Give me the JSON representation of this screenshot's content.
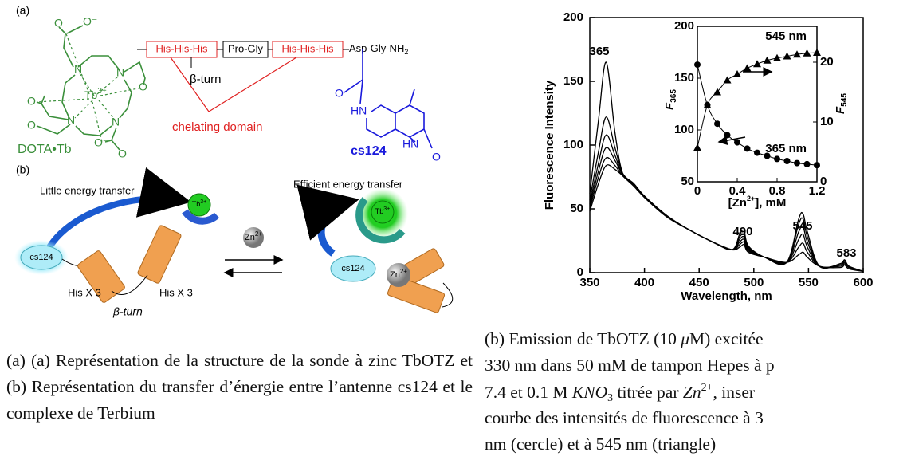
{
  "figure_a": {
    "panel_a": "(a)",
    "panel_b": "(b)",
    "atoms": [
      "O",
      "O⁻",
      "N",
      "N",
      "O",
      "N",
      "N",
      "O",
      "O",
      "O⁻",
      "O"
    ],
    "metal": [
      "Tb",
      "3+"
    ],
    "dota_label": "DOTA•Tb",
    "peptide": [
      "His-His-His",
      "Pro-Gly",
      "His-His-His"
    ],
    "peptide_end": [
      "Asp-Gly-NH",
      "2"
    ],
    "beta_turn": "β-turn",
    "chelating": "chelating domain",
    "cs124_atoms": [
      "O",
      "HN",
      "HN",
      "O"
    ],
    "cs124": "cs124",
    "little": "Little energy transfer",
    "efficient": "Efficient energy transfer",
    "scheme": [
      "cs124",
      "Tb",
      "3+",
      "Zn",
      "2+",
      "His X 3",
      "His X 3",
      "β-turn"
    ]
  },
  "chart_data": [
    {
      "type": "line",
      "x_label": "Wavelength, nm",
      "y_label": "Fluorescence Intensity",
      "x": [
        350,
        358,
        365,
        373,
        380,
        390,
        400,
        420,
        440,
        460,
        480,
        487,
        491,
        495,
        510,
        530,
        541,
        545,
        549,
        560,
        579,
        583,
        587,
        600
      ],
      "series": [
        {
          "color": "#000000",
          "values": [
            62,
            120,
            165,
            110,
            78,
            70,
            60,
            45,
            34,
            25,
            18,
            20,
            22,
            16,
            12,
            8,
            14,
            16,
            12,
            5,
            4,
            6,
            3,
            1
          ]
        },
        {
          "color": "#000000",
          "values": [
            57,
            95,
            122,
            98,
            78,
            70,
            60,
            45,
            34,
            25,
            18,
            22,
            24,
            17,
            12,
            8,
            20,
            23,
            16,
            5,
            5,
            7,
            4,
            1
          ]
        },
        {
          "color": "#000000",
          "values": [
            54,
            86,
            108,
            92,
            77,
            69,
            60,
            45,
            34,
            25,
            18,
            24,
            26,
            18,
            12,
            8,
            26,
            30,
            20,
            5,
            6,
            8,
            4,
            1
          ]
        },
        {
          "color": "#000000",
          "values": [
            52,
            80,
            98,
            88,
            77,
            69,
            59,
            44,
            34,
            25,
            18,
            26,
            28,
            19,
            12,
            8,
            32,
            36,
            24,
            5,
            6,
            9,
            5,
            1
          ]
        },
        {
          "color": "#000000",
          "values": [
            50,
            75,
            90,
            84,
            76,
            68,
            59,
            44,
            34,
            25,
            18,
            28,
            30,
            20,
            12,
            8,
            38,
            42,
            28,
            5,
            7,
            10,
            5,
            1
          ]
        },
        {
          "color": "#000000",
          "values": [
            48,
            70,
            84,
            81,
            76,
            68,
            59,
            44,
            34,
            25,
            18,
            30,
            33,
            21,
            12,
            8,
            42,
            46,
            32,
            5,
            7,
            10,
            5,
            1
          ]
        }
      ],
      "xlim": [
        350,
        600
      ],
      "xticks": [
        350,
        400,
        450,
        500,
        550,
        600
      ],
      "ylim": [
        0,
        200
      ],
      "yticks": [
        0,
        50,
        100,
        150,
        200
      ],
      "annotations": [
        "365",
        "490",
        "545",
        "583"
      ]
    },
    {
      "type": "scatter",
      "x_label": [
        "[Zn",
        "2+",
        "], mM"
      ],
      "y_label": [
        "F",
        "365"
      ],
      "y2_label": [
        "F",
        "545"
      ],
      "x": [
        0,
        0.1,
        0.2,
        0.3,
        0.4,
        0.5,
        0.6,
        0.7,
        0.8,
        0.9,
        1.0,
        1.1,
        1.2
      ],
      "series": [
        {
          "name": "365 nm",
          "marker": "circle",
          "color": "#000000",
          "values": [
            163,
            124,
            106,
            95,
            88,
            82,
            78,
            75,
            72,
            70,
            68,
            67,
            66
          ]
        },
        {
          "name": "545 nm",
          "marker": "triangle",
          "color": "#000000",
          "axis": "y2",
          "values": [
            5.7,
            12.8,
            15,
            17,
            18,
            19,
            19.7,
            20.3,
            20.7,
            21,
            21.3,
            21.5,
            21.6
          ]
        }
      ],
      "xlim": [
        0,
        1.2
      ],
      "xticks": [
        0,
        0.4,
        0.8,
        1.2
      ],
      "ylim": [
        50,
        200
      ],
      "yticks": [
        50,
        100,
        150,
        200
      ],
      "y2lim": [
        0,
        26
      ],
      "y2ticks": [
        0,
        10,
        20
      ]
    }
  ],
  "captions": {
    "a": "(a) (a) Représentation de la structure de la sonde à zinc TbOTZ et (b) Représentation du transfer d’énergie entre l’antenne cs124 et le complexe de Terbium",
    "b": [
      [
        "(b) Emission de TbOTZ (10 ",
        "μ",
        "M) excitée"
      ],
      [
        "330 nm dans 50 mM de tampon Hepes à p"
      ],
      [
        "7.4 et 0.1 M ",
        "KNO",
        "3",
        " titrée par ",
        "Zn",
        "2+",
        ", inser"
      ],
      [
        "courbe des intensités de fluorescence à 3"
      ],
      [
        "nm (cercle) et à 545 nm (triangle)"
      ]
    ]
  }
}
